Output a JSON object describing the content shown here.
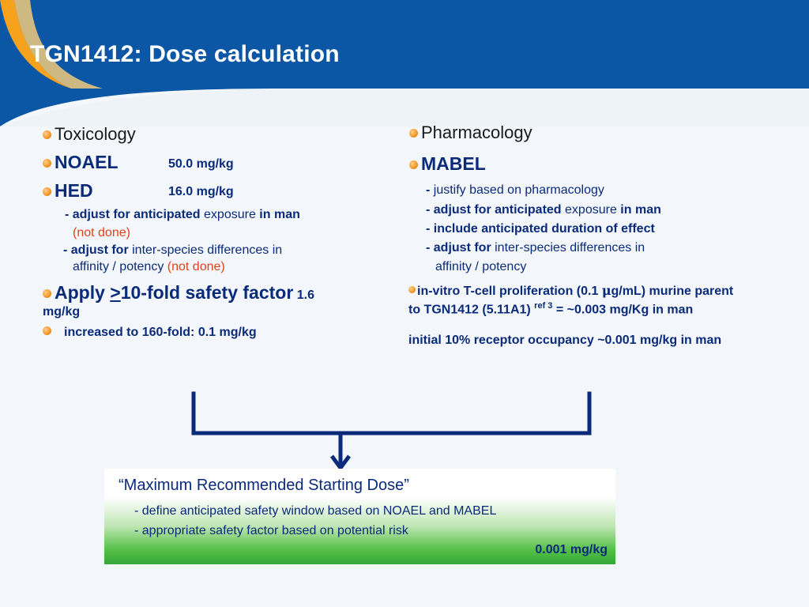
{
  "title": "TGN1412: Dose calculation",
  "left": {
    "toxicology": "Toxicology",
    "noael_label": "NOAEL",
    "noael_value": "50.0 mg/kg",
    "hed_label": "HED",
    "hed_value": "16.0 mg/kg",
    "adjust1_bold": "- adjust for anticipated",
    "adjust1_normal": " exposure ",
    "adjust1_bold2": "in man",
    "not_done": "(not done)",
    "adjust2_bold": "- adjust for",
    "adjust2_normal": " inter-species differences in",
    "adjust2_line2": "affinity / potency ",
    "not_done2": "(not done)",
    "apply_a": "Apply ",
    "apply_gte": ">",
    "apply_b": "10-fold safety factor",
    "apply_c": " 1.6",
    "apply_unit": "mg/kg",
    "increased": "increased to 160-fold:   0.1 mg/kg"
  },
  "right": {
    "pharmacology": "Pharmacology",
    "mabel": "MABEL",
    "l1_dash": "- ",
    "l1": "justify based on pharmacology",
    "l2_bold": "- adjust for anticipated",
    "l2_normal": " exposure ",
    "l2_bold2": "in man",
    "l3": "- include anticipated duration of effect",
    "l4_bold": "- adjust for",
    "l4_normal": " inter-species differences in",
    "l4_line2": "affinity / potency",
    "invitro_a": "in-vitro T-cell proliferation (0.1 ",
    "invitro_mu": "μ",
    "invitro_b": "g/mL) murine parent",
    "invitro2_a": "to TGN1412 (5.11A1) ",
    "invitro2_ref": "ref 3",
    "invitro2_b": " = ~0.003 mg/Kg in man",
    "occupancy": "initial 10% receptor occupancy  ~0.001 mg/kg in man"
  },
  "box": {
    "title": "“Maximum Recommended Starting Dose”",
    "line1": "- define anticipated safety window based on NOAEL and MABEL",
    "line2": "- appropriate safety factor based on potential risk",
    "value": "0.001 mg/kg"
  },
  "colors": {
    "header": "#0b57a6",
    "accent_orange": "#f39a2c",
    "navy_text": "#0a2a7a",
    "red_text": "#e2401c",
    "box_green": "#34a83a"
  }
}
